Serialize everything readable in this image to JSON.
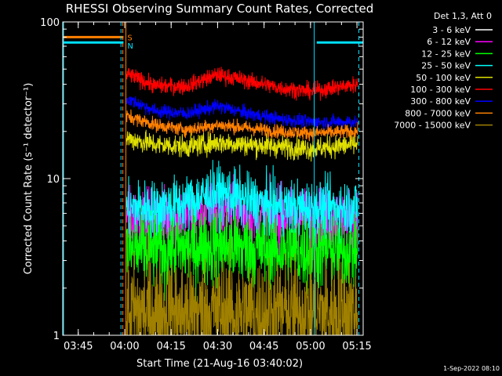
{
  "chart_data": {
    "type": "line",
    "title": "RHESSI Observing Summary Count Rates, Corrected",
    "xlabel": "Start Time (21-Aug-16 03:40:02)",
    "ylabel": "Corrected Count Rate (s⁻¹ detector⁻¹)",
    "yscale": "log",
    "ylim": [
      1,
      100
    ],
    "xlim_minutes": [
      0,
      97
    ],
    "x_ticks": [
      {
        "label": "03:45",
        "minute": 5
      },
      {
        "label": "04:00",
        "minute": 20
      },
      {
        "label": "04:15",
        "minute": 35
      },
      {
        "label": "04:30",
        "minute": 50
      },
      {
        "label": "04:45",
        "minute": 65
      },
      {
        "label": "05:00",
        "minute": 80
      },
      {
        "label": "05:15",
        "minute": 95
      }
    ],
    "y_ticks": [
      {
        "label": "1",
        "value": 1
      },
      {
        "label": "10",
        "value": 10
      },
      {
        "label": "100",
        "value": 100
      }
    ],
    "legend_title": "Det 1,3, Att 0",
    "legend_placement": "right",
    "footer_date": "1-Sep-2022 08:10",
    "flags": [
      {
        "label": "S",
        "color": "#ff8000",
        "value": 80,
        "segments": [
          [
            0,
            19.6
          ]
        ]
      },
      {
        "label": "N",
        "color": "#00e0ff",
        "value": 74,
        "segments": [
          [
            0,
            19.6
          ],
          [
            82,
            97
          ]
        ]
      }
    ],
    "vlines": [
      {
        "minute": 18.8,
        "color": "#00e0ff",
        "style": "dash"
      },
      {
        "minute": 19.4,
        "color": "#ff8000",
        "style": "dash"
      },
      {
        "minute": 20.4,
        "color": "#ff8000",
        "style": "solid"
      },
      {
        "minute": 81.2,
        "color": "#00e0ff",
        "style": "solid"
      },
      {
        "minute": 95.6,
        "color": "#00e0ff",
        "style": "dash"
      }
    ],
    "data_range_minutes": [
      20.6,
      95.2
    ],
    "series": [
      {
        "name": "3 - 6 keV",
        "color": "#000000",
        "x": [
          21,
          30,
          40,
          50,
          60,
          70,
          80,
          95
        ],
        "y": [
          1.5,
          1.5,
          1.6,
          2.4,
          1.6,
          1.5,
          1.4,
          1.4
        ],
        "noise": 0.5
      },
      {
        "name": "6 - 12 keV",
        "color": "#ff00ff",
        "x": [
          21,
          30,
          40,
          50,
          60,
          70,
          80,
          95
        ],
        "y": [
          5.6,
          5.6,
          5.8,
          6.3,
          5.8,
          5.7,
          5.6,
          5.6
        ],
        "noise": 0.22
      },
      {
        "name": "12 - 25 keV",
        "color": "#00ff00",
        "x": [
          21,
          30,
          40,
          50,
          60,
          70,
          80,
          95
        ],
        "y": [
          3.5,
          3.5,
          3.6,
          3.8,
          3.6,
          3.5,
          3.5,
          3.5
        ],
        "noise": 0.3
      },
      {
        "name": "25 - 50 keV",
        "color": "#00ffff",
        "x": [
          21,
          30,
          40,
          50,
          60,
          70,
          80,
          95
        ],
        "y": [
          6.5,
          6.5,
          7.0,
          8.2,
          7.2,
          6.6,
          6.5,
          6.6
        ],
        "noise": 0.2
      },
      {
        "name": "50 - 100 keV",
        "color": "#e0e000",
        "x": [
          21,
          30,
          40,
          50,
          60,
          70,
          80,
          95
        ],
        "y": [
          18,
          16.5,
          16,
          17,
          16.5,
          16,
          15.5,
          16.5
        ],
        "noise": 0.08
      },
      {
        "name": "100 - 300 keV",
        "color": "#ff0000",
        "x": [
          21,
          30,
          40,
          50,
          60,
          70,
          80,
          95
        ],
        "y": [
          46,
          39,
          39,
          46,
          42,
          38,
          36,
          40
        ],
        "noise": 0.06
      },
      {
        "name": "300 - 800 keV",
        "color": "#0000ff",
        "x": [
          21,
          30,
          40,
          50,
          60,
          70,
          80,
          95
        ],
        "y": [
          32,
          27,
          26,
          29,
          26,
          24,
          23,
          23
        ],
        "noise": 0.05
      },
      {
        "name": "800 - 7000 keV",
        "color": "#ff8000",
        "x": [
          21,
          30,
          40,
          50,
          60,
          70,
          80,
          95
        ],
        "y": [
          25,
          22,
          20.5,
          22,
          21,
          20,
          19.5,
          20
        ],
        "noise": 0.05
      },
      {
        "name": "7000 - 15000 keV",
        "color": "#a08000",
        "x": [
          21,
          30,
          40,
          50,
          60,
          70,
          80,
          95
        ],
        "y": [
          1.4,
          1.4,
          1.4,
          1.4,
          1.4,
          1.4,
          1.4,
          1.4
        ],
        "noise": 0.4
      }
    ]
  }
}
